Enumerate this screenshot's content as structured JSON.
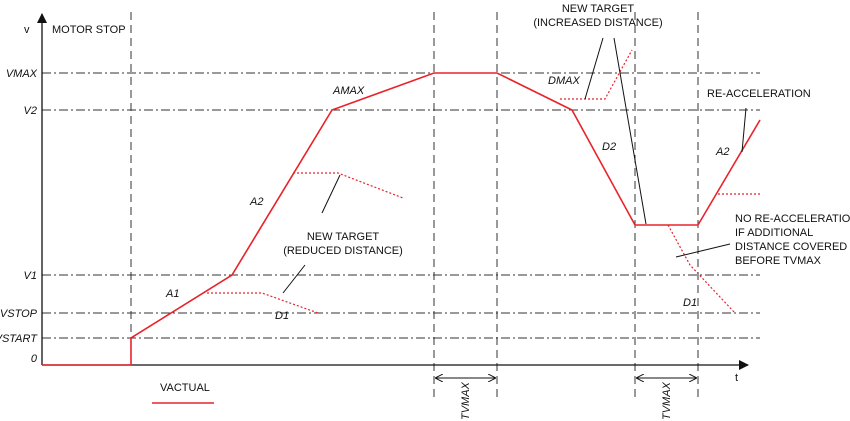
{
  "axes": {
    "y_label": "v",
    "x_label": "t",
    "motor_stop": "MOTOR STOP"
  },
  "velocity_levels": {
    "vmax": "VMAX",
    "v2": "V2",
    "v1": "V1",
    "vstop": "VSTOP",
    "vstart": "VSTART",
    "zero": "0"
  },
  "segments": {
    "a1": "A1",
    "a2": "A2",
    "amax": "AMAX",
    "dmax": "DMAX",
    "d2": "D2",
    "d1_first": "D1",
    "d1_second": "D1",
    "a2_second": "A2"
  },
  "annotations": {
    "new_target_reduced": [
      "NEW TARGET",
      "(REDUCED DISTANCE)"
    ],
    "new_target_increased": [
      "NEW TARGET",
      "(INCREASED DISTANCE)"
    ],
    "re_acceleration": "RE-ACCELERATION",
    "no_re_acceleration": [
      "NO RE-ACCELERATION",
      "IF ADDITIONAL",
      "DISTANCE COVERED",
      "BEFORE TVMAX"
    ]
  },
  "intervals": {
    "tvmax_first": "TVMAX",
    "tvmax_second": "TVMAX"
  },
  "legend": {
    "label": "VACTUAL",
    "color": "#e8232a"
  },
  "colors": {
    "profile": "#e8232a",
    "axis": "#111111",
    "guide": "#333333"
  }
}
